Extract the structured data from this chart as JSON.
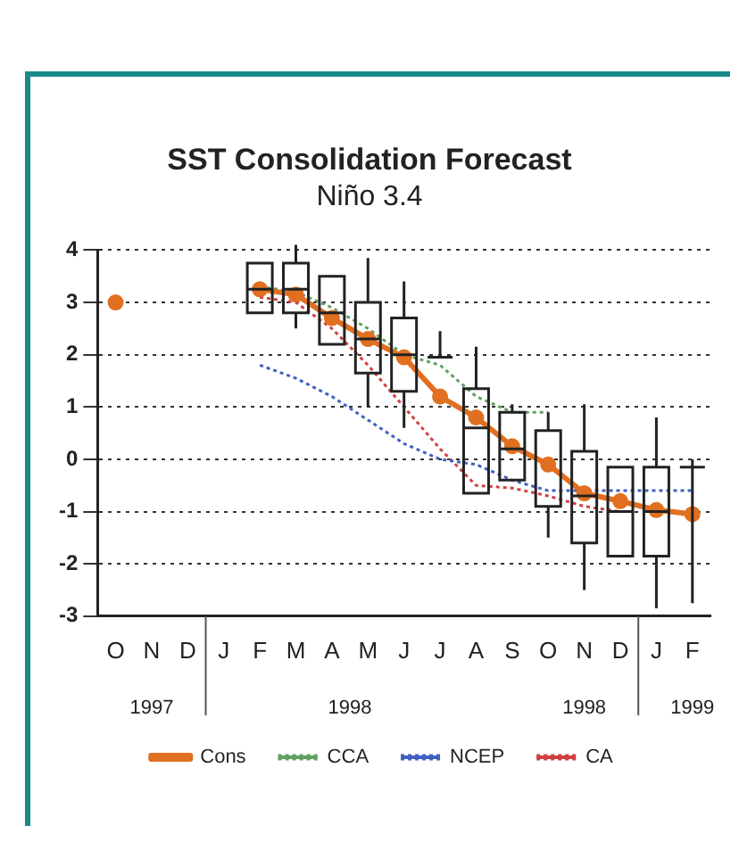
{
  "chart_data": {
    "type": "line",
    "title": "SST Consolidation Forecast",
    "subtitle": "Niño 3.4",
    "categories": [
      "O",
      "N",
      "D",
      "J",
      "F",
      "M",
      "A",
      "M",
      "J",
      "J",
      "A",
      "S",
      "O",
      "N",
      "D",
      "J",
      "F"
    ],
    "ylim": [
      -3,
      4
    ],
    "yticks": [
      -3,
      -2,
      -1,
      0,
      1,
      2,
      3,
      4
    ],
    "grid": "y",
    "legend": "bottom",
    "annotations": [
      "1997",
      "1998",
      "1998",
      "1999"
    ],
    "series": [
      {
        "type": "box",
        "color": "#222222",
        "boxes": [
          null,
          null,
          null,
          null,
          {
            "low": 2.8,
            "q1": 2.8,
            "median": 3.25,
            "q3": 3.75,
            "high": 3.75
          },
          {
            "low": 2.5,
            "q1": 2.8,
            "median": 3.25,
            "q3": 3.75,
            "high": 4.1
          },
          {
            "low": 2.2,
            "q1": 2.2,
            "median": 2.8,
            "q3": 3.5,
            "high": 3.5
          },
          {
            "low": 1.0,
            "q1": 1.65,
            "median": 2.3,
            "q3": 3.0,
            "high": 3.85
          },
          {
            "low": 0.6,
            "q1": 1.3,
            "median": 2.0,
            "q3": 2.7,
            "high": 3.4
          },
          {
            "low": 1.95,
            "q1": 1.95,
            "median": 1.95,
            "q3": 1.95,
            "high": 2.45
          },
          {
            "low": -0.65,
            "q1": -0.65,
            "median": 0.6,
            "q3": 1.35,
            "high": 2.15
          },
          {
            "low": -0.4,
            "q1": -0.4,
            "median": 0.2,
            "q3": 0.9,
            "high": 1.05
          },
          {
            "low": -1.5,
            "q1": -0.9,
            "median": 0.55,
            "q3": 0.55,
            "high": 0.9
          },
          {
            "low": -2.5,
            "q1": -1.6,
            "median": -0.7,
            "q3": 0.15,
            "high": 1.05
          },
          {
            "low": -1.85,
            "q1": -1.85,
            "median": -1.0,
            "q3": -0.15,
            "high": -0.15
          },
          {
            "low": -2.85,
            "q1": -1.85,
            "median": -1.0,
            "q3": -0.15,
            "high": 0.8
          },
          {
            "low": -2.75,
            "q1": -0.15,
            "median": -0.15,
            "q3": -0.15,
            "high": 0.0
          }
        ]
      },
      {
        "name": "Cons",
        "type": "line",
        "color": "#e07020",
        "marker": "circle",
        "line_style": "solid",
        "values": [
          3.0,
          null,
          null,
          null,
          3.25,
          3.15,
          2.7,
          2.3,
          1.95,
          1.2,
          0.8,
          0.25,
          -0.1,
          -0.65,
          -0.8,
          -0.97,
          -1.05
        ]
      },
      {
        "name": "CCA",
        "type": "line",
        "color": "#60a060",
        "marker": "none",
        "line_style": "dotted",
        "values": [
          null,
          null,
          null,
          null,
          3.3,
          3.2,
          2.9,
          2.5,
          2.0,
          1.8,
          1.2,
          0.9,
          0.9,
          null,
          null,
          null,
          null
        ]
      },
      {
        "name": "NCEP",
        "type": "line",
        "color": "#4060c0",
        "marker": "none",
        "line_style": "dotted",
        "values": [
          null,
          null,
          null,
          null,
          1.8,
          1.55,
          1.2,
          0.75,
          0.3,
          0.0,
          -0.1,
          -0.4,
          -0.6,
          -0.6,
          -0.6,
          -0.6,
          -0.6
        ]
      },
      {
        "name": "CA",
        "type": "line",
        "color": "#d04040",
        "marker": "none",
        "line_style": "dotted",
        "values": [
          null,
          null,
          null,
          null,
          3.1,
          3.0,
          2.5,
          1.8,
          1.0,
          0.2,
          -0.5,
          -0.55,
          -0.7,
          -0.9,
          -1.0,
          null,
          null
        ]
      }
    ]
  }
}
